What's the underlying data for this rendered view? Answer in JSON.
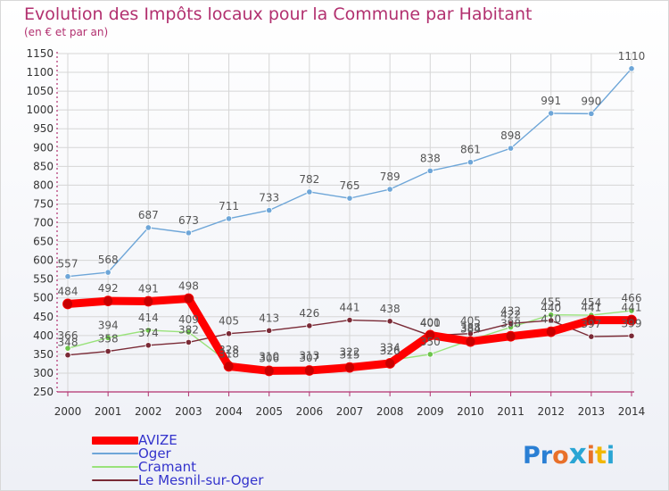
{
  "header": {
    "title": "Evolution des Impôts locaux pour la Commune par Habitant",
    "subtitle": "(en € et par an)"
  },
  "colors": {
    "title": "#b2306f",
    "axis": "#b2306f",
    "legend_text": "#3333cc",
    "grid": "#d6d6d6",
    "tick_label": "#333333",
    "value_label": "#555555"
  },
  "logo": {
    "text": "Proxiti",
    "colors": [
      "#2a7fd4",
      "#2a7fd4",
      "#e8702a",
      "#2aa5d4",
      "#e8702a",
      "#f2b705",
      "#2aa5d4"
    ]
  },
  "chart_data": {
    "type": "line",
    "title": "Evolution des Impôts locaux pour la Commune par Habitant",
    "subtitle": "(en € et par an)",
    "xlabel": "",
    "ylabel": "",
    "x": [
      "2000",
      "2001",
      "2002",
      "2003",
      "2004",
      "2005",
      "2006",
      "2007",
      "2008",
      "2009",
      "2010",
      "2011",
      "2012",
      "2013",
      "2014"
    ],
    "ylim": [
      250,
      1150
    ],
    "yticks": [
      250,
      300,
      350,
      400,
      450,
      500,
      550,
      600,
      650,
      700,
      750,
      800,
      850,
      900,
      950,
      1000,
      1050,
      1100,
      1150
    ],
    "grid": true,
    "legend_position": "bottom-left",
    "series": [
      {
        "name": "AVIZE",
        "color": "#ff0000",
        "width": 9,
        "values": [
          484,
          492,
          491,
          498,
          318,
          306,
          307,
          315,
          326,
          401,
          384,
          398,
          410,
          441,
          441
        ]
      },
      {
        "name": "Oger",
        "color": "#6ea6d8",
        "width": 1.4,
        "values": [
          557,
          568,
          687,
          673,
          711,
          733,
          782,
          765,
          789,
          838,
          861,
          898,
          991,
          990,
          1110
        ]
      },
      {
        "name": "Cramant",
        "color": "#99e27a",
        "width": 1.4,
        "values": [
          366,
          394,
          414,
          409,
          328,
          310,
          313,
          322,
          334,
          350,
          388,
          422,
          455,
          454,
          466
        ]
      },
      {
        "name": "Le Mesnil-sur-Oger",
        "color": "#7a2a36",
        "width": 1.4,
        "values": [
          348,
          358,
          374,
          382,
          405,
          413,
          426,
          441,
          438,
          400,
          405,
          432,
          440,
          397,
          399
        ]
      }
    ]
  }
}
